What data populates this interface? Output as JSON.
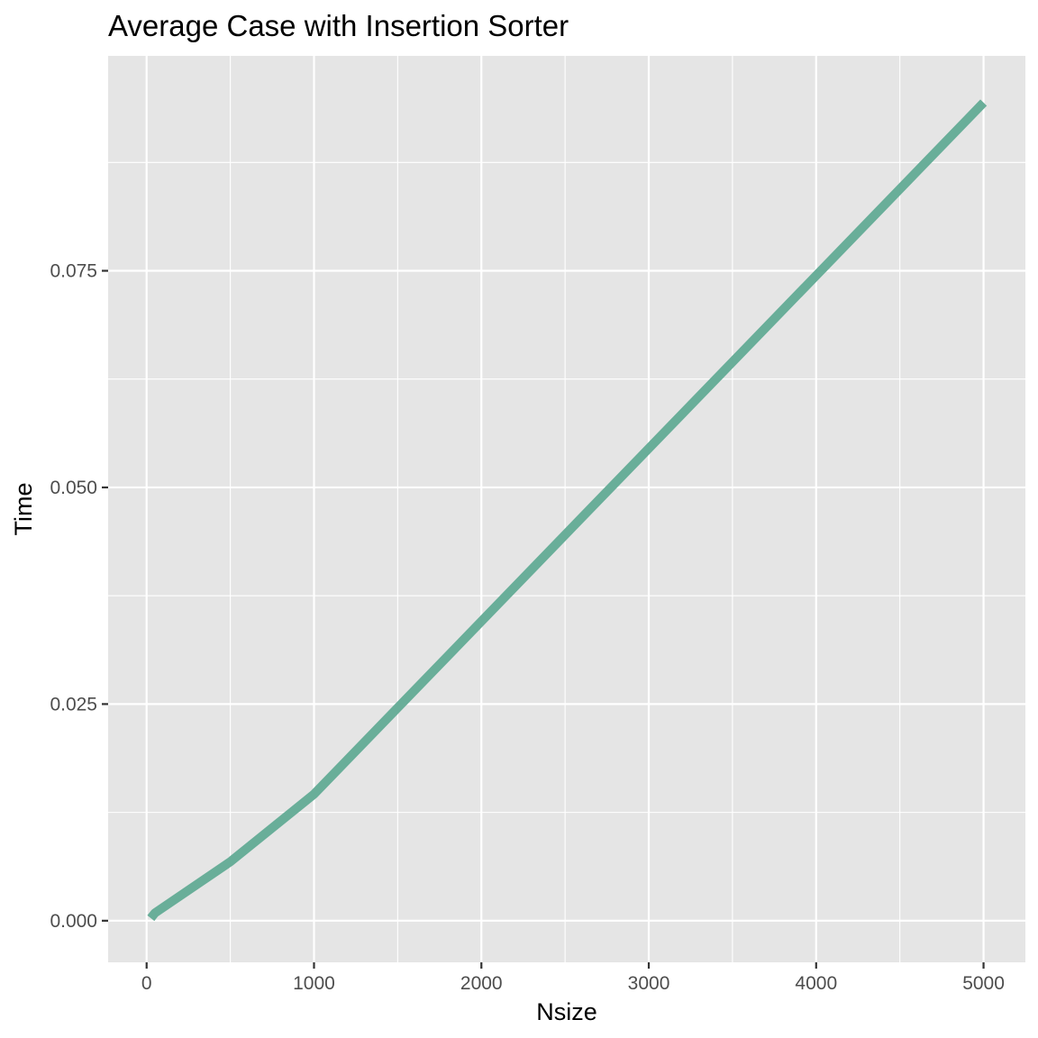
{
  "chart_data": {
    "type": "line",
    "title": "Average Case with Insertion Sorter",
    "xlabel": "Nsize",
    "ylabel": "Time",
    "xlim": [
      -230,
      5250
    ],
    "ylim": [
      -0.0048,
      0.0998
    ],
    "x_ticks": [
      0,
      1000,
      2000,
      3000,
      4000,
      5000
    ],
    "x_tick_labels": [
      "0",
      "1000",
      "2000",
      "3000",
      "4000",
      "5000"
    ],
    "y_ticks": [
      0,
      0.025,
      0.05,
      0.075
    ],
    "y_tick_labels": [
      "0.000",
      "0.025",
      "0.050",
      "0.075"
    ],
    "grid": true,
    "legend": "none",
    "series": [
      {
        "x": [
          25,
          50,
          500,
          1000,
          5000
        ],
        "y": [
          0.0003,
          0.0009,
          0.0068,
          0.0146,
          0.0944
        ]
      }
    ],
    "colors": {
      "panel_background": "#e5e5e5",
      "grid_line": "#ffffff",
      "series_line": "#69ae99",
      "tick_text": "#4d4d4d",
      "tick_mark": "#333333"
    }
  }
}
